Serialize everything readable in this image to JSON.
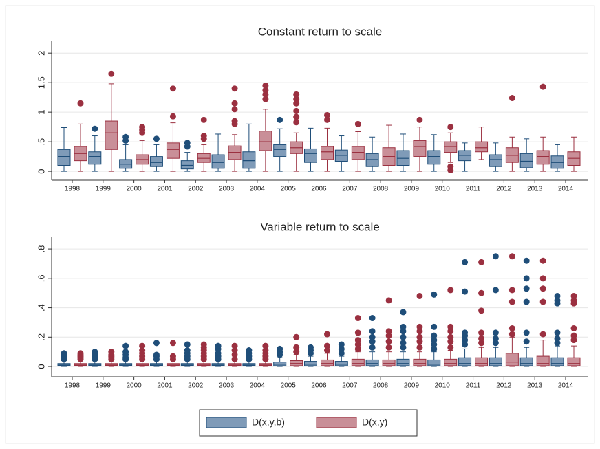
{
  "chart_data": [
    {
      "type": "box",
      "title": "Constant return to scale",
      "categories": [
        "1998",
        "1999",
        "2000",
        "2001",
        "2002",
        "2003",
        "2004",
        "2005",
        "2006",
        "2007",
        "2008",
        "2009",
        "2010",
        "2011",
        "2012",
        "2013",
        "2014"
      ],
      "ylim": [
        -0.15,
        2.2
      ],
      "yticks": [
        0,
        {
          "value": 0.5,
          "label": ".5"
        },
        1,
        1.5,
        2
      ],
      "grid": true,
      "series": [
        {
          "name": "D(x,y,b)",
          "color": "#1f4e79",
          "fill": "#7f9bb8",
          "min": [
            0,
            0,
            0,
            0,
            0,
            0,
            0,
            0,
            0,
            0,
            0,
            0,
            0,
            0,
            0,
            0,
            0
          ],
          "q1": [
            0.1,
            0.12,
            0.05,
            0.08,
            0.04,
            0.05,
            0.05,
            0.25,
            0.15,
            0.17,
            0.08,
            0.1,
            0.12,
            0.18,
            0.08,
            0.06,
            0.05
          ],
          "median": [
            0.25,
            0.25,
            0.12,
            0.15,
            0.1,
            0.15,
            0.18,
            0.37,
            0.3,
            0.27,
            0.2,
            0.22,
            0.25,
            0.27,
            0.2,
            0.17,
            0.15
          ],
          "q3": [
            0.37,
            0.33,
            0.2,
            0.25,
            0.18,
            0.28,
            0.33,
            0.45,
            0.38,
            0.36,
            0.3,
            0.35,
            0.35,
            0.35,
            0.28,
            0.3,
            0.26
          ],
          "max": [
            0.74,
            0.6,
            0.45,
            0.45,
            0.32,
            0.63,
            0.8,
            0.72,
            0.73,
            0.6,
            0.58,
            0.63,
            0.62,
            0.48,
            0.48,
            0.55,
            0.45
          ],
          "outliers": [
            [],
            [
              0.72
            ],
            [
              0.52,
              0.58
            ],
            [
              0.55
            ],
            [
              0.42,
              0.48
            ],
            [],
            [],
            [
              0.87
            ],
            [],
            [],
            [],
            [],
            [],
            [],
            [],
            [],
            []
          ]
        },
        {
          "name": "D(x,y)",
          "color": "#9b3040",
          "fill": "#c98f98",
          "min": [
            0,
            0,
            0,
            0,
            0,
            0,
            0,
            0,
            0,
            0,
            0,
            0,
            0.15,
            0.2,
            0,
            0,
            0
          ],
          "q1": [
            0.18,
            0.37,
            0.12,
            0.22,
            0.15,
            0.2,
            0.35,
            0.3,
            0.2,
            0.2,
            0.1,
            0.25,
            0.32,
            0.33,
            0.15,
            0.12,
            0.1
          ],
          "median": [
            0.3,
            0.65,
            0.2,
            0.37,
            0.22,
            0.32,
            0.5,
            0.4,
            0.33,
            0.32,
            0.25,
            0.42,
            0.42,
            0.4,
            0.27,
            0.25,
            0.22
          ],
          "q3": [
            0.42,
            0.85,
            0.28,
            0.48,
            0.3,
            0.43,
            0.68,
            0.5,
            0.42,
            0.42,
            0.4,
            0.52,
            0.5,
            0.5,
            0.4,
            0.35,
            0.33
          ],
          "max": [
            0.8,
            1.48,
            0.52,
            0.82,
            0.45,
            0.62,
            1.05,
            0.65,
            0.73,
            0.67,
            0.78,
            0.75,
            0.65,
            0.75,
            0.58,
            0.58,
            0.58
          ],
          "outliers": [
            [
              1.15
            ],
            [
              1.65
            ],
            [
              0.65,
              0.7,
              0.75
            ],
            [
              0.93,
              1.4
            ],
            [
              0.55,
              0.6,
              0.87
            ],
            [
              0.8,
              0.85,
              1.05,
              1.15,
              1.4
            ],
            [
              1.22,
              1.3,
              1.37,
              1.45
            ],
            [
              0.83,
              0.92,
              1.02,
              1.15,
              1.22,
              1.3
            ],
            [
              0.87,
              0.95
            ],
            [
              0.8
            ],
            [],
            [
              0.87
            ],
            [
              0.75,
              0.08,
              0.02
            ],
            [],
            [
              1.24
            ],
            [
              1.43
            ],
            []
          ]
        }
      ]
    },
    {
      "type": "box",
      "title": "Variable return to scale",
      "categories": [
        "1998",
        "1999",
        "2000",
        "2001",
        "2002",
        "2003",
        "2004",
        "2005",
        "2006",
        "2007",
        "2008",
        "2009",
        "2010",
        "2011",
        "2012",
        "2013",
        "2014"
      ],
      "ylim": [
        -0.07,
        0.88
      ],
      "yticks": [
        0,
        {
          "value": 0.2,
          "label": ".2"
        },
        {
          "value": 0.4,
          "label": ".4"
        },
        {
          "value": 0.6,
          "label": ".6"
        },
        {
          "value": 0.8,
          "label": ".8"
        }
      ],
      "grid": true,
      "series": [
        {
          "color": "#1f4e79",
          "fill": "#7f9bb8",
          "min": [
            0,
            0,
            0,
            0,
            0,
            0,
            0,
            0,
            0,
            0,
            0,
            0,
            0,
            0,
            0,
            0,
            0
          ],
          "q1": [
            0.005,
            0.005,
            0.005,
            0.005,
            0.005,
            0.005,
            0.005,
            0.005,
            0.005,
            0.005,
            0.005,
            0.005,
            0.005,
            0.005,
            0.005,
            0.005,
            0.005
          ],
          "median": [
            0.01,
            0.01,
            0.01,
            0.01,
            0.01,
            0.01,
            0.01,
            0.015,
            0.015,
            0.015,
            0.02,
            0.02,
            0.015,
            0.02,
            0.02,
            0.02,
            0.02
          ],
          "q3": [
            0.02,
            0.02,
            0.02,
            0.02,
            0.02,
            0.02,
            0.02,
            0.03,
            0.035,
            0.035,
            0.045,
            0.05,
            0.045,
            0.06,
            0.06,
            0.06,
            0.06
          ],
          "max": [
            0.04,
            0.04,
            0.04,
            0.04,
            0.04,
            0.04,
            0.04,
            0.06,
            0.07,
            0.07,
            0.1,
            0.1,
            0.1,
            0.12,
            0.13,
            0.13,
            0.14
          ],
          "outliers": [
            [
              0.05,
              0.06,
              0.07,
              0.08,
              0.09
            ],
            [
              0.05,
              0.06,
              0.07,
              0.08,
              0.09,
              0.1
            ],
            [
              0.05,
              0.06,
              0.08,
              0.1,
              0.14
            ],
            [
              0.05,
              0.07,
              0.08,
              0.16
            ],
            [
              0.05,
              0.07,
              0.09,
              0.11,
              0.15
            ],
            [
              0.05,
              0.07,
              0.09,
              0.12,
              0.14
            ],
            [
              0.05,
              0.07,
              0.09,
              0.11
            ],
            [
              0.08,
              0.1,
              0.12
            ],
            [
              0.09,
              0.11,
              0.13
            ],
            [
              0.09,
              0.12,
              0.15
            ],
            [
              0.13,
              0.17,
              0.2,
              0.24,
              0.33
            ],
            [
              0.13,
              0.16,
              0.2,
              0.24,
              0.27,
              0.37
            ],
            [
              0.12,
              0.15,
              0.18,
              0.21,
              0.27,
              0.49
            ],
            [
              0.15,
              0.18,
              0.21,
              0.23,
              0.51,
              0.71
            ],
            [
              0.16,
              0.19,
              0.23,
              0.52,
              0.75
            ],
            [
              0.17,
              0.23,
              0.44,
              0.53,
              0.6,
              0.72
            ],
            [
              0.16,
              0.19,
              0.23,
              0.43,
              0.45,
              0.48
            ]
          ]
        },
        {
          "color": "#9b3040",
          "fill": "#c98f98",
          "min": [
            0,
            0,
            0,
            0,
            0,
            0,
            0,
            0,
            0,
            0,
            0,
            0,
            0,
            0,
            0,
            0,
            0
          ],
          "q1": [
            0.005,
            0.005,
            0.005,
            0.005,
            0.005,
            0.005,
            0.005,
            0.005,
            0.005,
            0.005,
            0.005,
            0.005,
            0.005,
            0.005,
            0.005,
            0.005,
            0.005
          ],
          "median": [
            0.01,
            0.01,
            0.01,
            0.01,
            0.01,
            0.01,
            0.01,
            0.02,
            0.02,
            0.02,
            0.02,
            0.02,
            0.02,
            0.02,
            0.03,
            0.02,
            0.02
          ],
          "q3": [
            0.02,
            0.02,
            0.02,
            0.02,
            0.02,
            0.02,
            0.02,
            0.04,
            0.045,
            0.05,
            0.045,
            0.05,
            0.05,
            0.06,
            0.09,
            0.07,
            0.06
          ],
          "max": [
            0.04,
            0.04,
            0.04,
            0.04,
            0.04,
            0.04,
            0.04,
            0.08,
            0.09,
            0.1,
            0.1,
            0.1,
            0.11,
            0.13,
            0.2,
            0.18,
            0.14
          ],
          "outliers": [
            [
              0.05,
              0.06,
              0.07,
              0.08,
              0.09
            ],
            [
              0.05,
              0.06,
              0.07,
              0.08,
              0.1
            ],
            [
              0.05,
              0.07,
              0.09,
              0.11,
              0.14
            ],
            [
              0.05,
              0.07,
              0.16
            ],
            [
              0.05,
              0.07,
              0.09,
              0.11,
              0.13,
              0.15
            ],
            [
              0.05,
              0.08,
              0.11,
              0.14
            ],
            [
              0.05,
              0.07,
              0.09,
              0.11,
              0.14
            ],
            [
              0.1,
              0.13,
              0.2
            ],
            [
              0.11,
              0.14,
              0.22
            ],
            [
              0.12,
              0.15,
              0.18,
              0.23,
              0.33
            ],
            [
              0.13,
              0.17,
              0.21,
              0.24,
              0.45
            ],
            [
              0.13,
              0.17,
              0.2,
              0.24,
              0.27,
              0.48
            ],
            [
              0.13,
              0.17,
              0.2,
              0.24,
              0.27,
              0.52
            ],
            [
              0.16,
              0.19,
              0.23,
              0.38,
              0.5,
              0.71
            ],
            [
              0.22,
              0.26,
              0.44,
              0.52,
              0.75
            ],
            [
              0.22,
              0.44,
              0.53,
              0.6,
              0.72
            ],
            [
              0.18,
              0.21,
              0.26,
              0.43,
              0.45,
              0.48
            ]
          ]
        }
      ]
    }
  ]
}
